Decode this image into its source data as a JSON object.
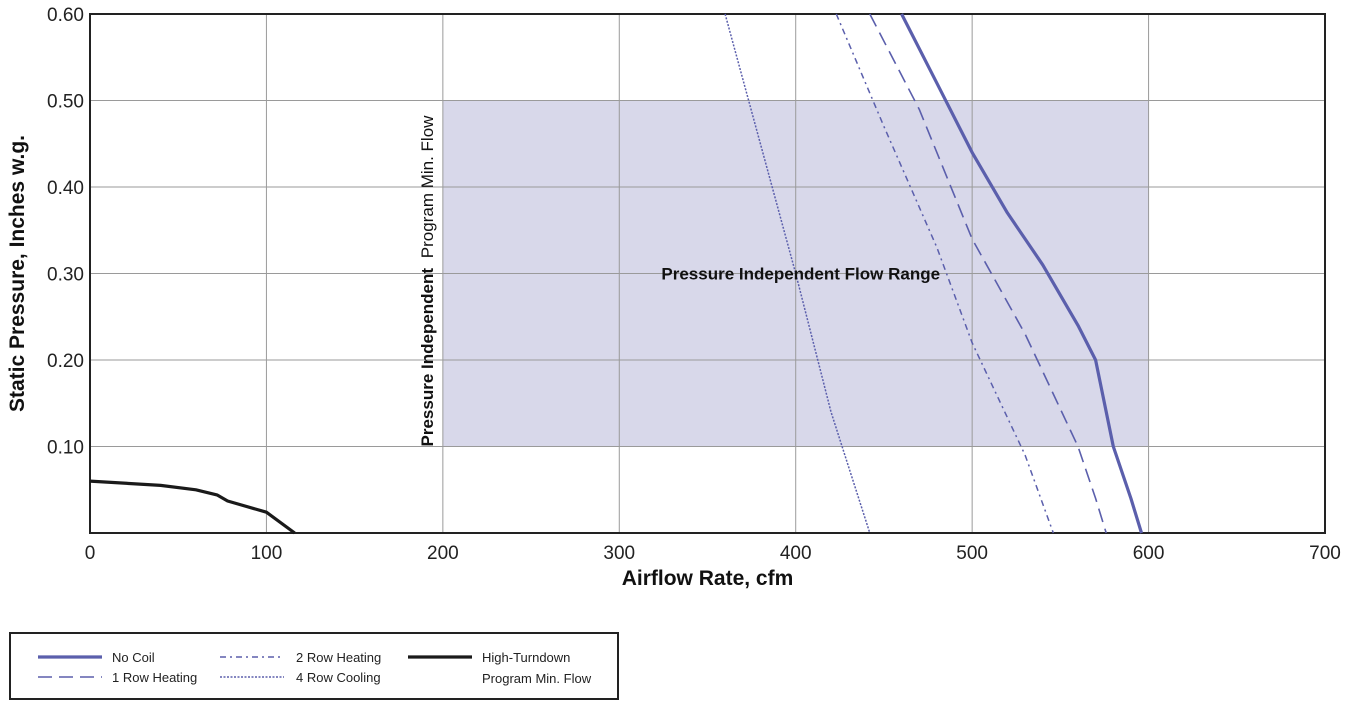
{
  "chart_data": {
    "type": "line",
    "title": "",
    "xlabel": "Airflow Rate, cfm",
    "ylabel": "Static Pressure, Inches w.g.",
    "xlim": [
      0,
      700
    ],
    "ylim": [
      0,
      0.6
    ],
    "x_ticks": [
      "0",
      "100",
      "200",
      "300",
      "400",
      "500",
      "600",
      "700"
    ],
    "y_ticks": [
      "0.10",
      "0.20",
      "0.30",
      "0.40",
      "0.50",
      "0.60"
    ],
    "grid": true,
    "region": {
      "label": "Pressure Independent Flow Range",
      "x": [
        200,
        600
      ],
      "y": [
        0.1,
        0.5
      ],
      "color": "#d4d4e8"
    },
    "vertical_label": {
      "bold": "Pressure Independent",
      "normal": "Program Min. Flow"
    },
    "series": [
      {
        "name": "No Coil",
        "style": "solid-thick",
        "color": "#5b5fac",
        "points": [
          [
            460,
            0.6
          ],
          [
            480,
            0.52
          ],
          [
            500,
            0.44
          ],
          [
            520,
            0.37
          ],
          [
            540,
            0.31
          ],
          [
            560,
            0.24
          ],
          [
            570,
            0.2
          ],
          [
            580,
            0.1
          ],
          [
            590,
            0.04
          ],
          [
            596,
            0.0
          ]
        ]
      },
      {
        "name": "1 Row Heating",
        "style": "dashed",
        "color": "#5b5fac",
        "points": [
          [
            442,
            0.6
          ],
          [
            470,
            0.49
          ],
          [
            500,
            0.34
          ],
          [
            530,
            0.23
          ],
          [
            560,
            0.1
          ],
          [
            570,
            0.04
          ],
          [
            576,
            0.0
          ]
        ]
      },
      {
        "name": "2 Row Heating",
        "style": "dash-dot",
        "color": "#5b5fac",
        "points": [
          [
            423,
            0.6
          ],
          [
            450,
            0.47
          ],
          [
            480,
            0.33
          ],
          [
            500,
            0.22
          ],
          [
            530,
            0.09
          ],
          [
            546,
            0.0
          ]
        ]
      },
      {
        "name": "4 Row Cooling",
        "style": "dotted",
        "color": "#5b5fac",
        "points": [
          [
            360,
            0.6
          ],
          [
            400,
            0.3
          ],
          [
            420,
            0.14
          ],
          [
            442,
            0.0
          ]
        ]
      },
      {
        "name": "High-Turndown Program Min. Flow",
        "style": "solid-black",
        "color": "#1a1a1a",
        "points": [
          [
            0,
            0.06
          ],
          [
            40,
            0.055
          ],
          [
            60,
            0.05
          ],
          [
            72,
            0.044
          ],
          [
            78,
            0.037
          ],
          [
            100,
            0.024
          ],
          [
            116,
            0.0
          ]
        ]
      }
    ],
    "legend": {
      "placement": "bottom-left",
      "entries": [
        [
          "No Coil"
        ],
        [
          "1 Row Heating"
        ],
        [
          "2 Row Heating"
        ],
        [
          "4 Row Cooling"
        ],
        [
          "High-Turndown",
          "Program Min. Flow"
        ]
      ]
    }
  }
}
